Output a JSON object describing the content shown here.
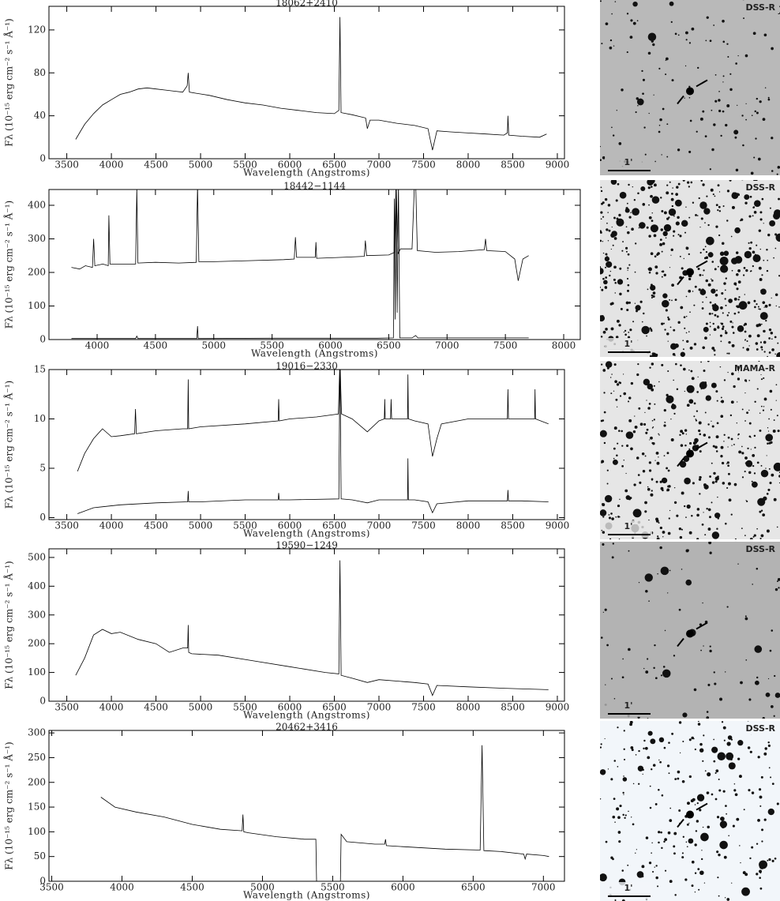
{
  "chart_data": [
    {
      "type": "line",
      "title": "18062+2410",
      "x_label": "Wavelength (Angstroms)",
      "y_label": "Fλ (10⁻¹⁵ erg cm⁻² s⁻¹ Å⁻¹)",
      "xlim": [
        3300,
        9080
      ],
      "ylim": [
        0,
        142
      ],
      "xticks": [
        3500,
        4000,
        4500,
        5000,
        5500,
        6000,
        6500,
        7000,
        7500,
        8000,
        8500,
        9000
      ],
      "yticks": [
        0,
        40,
        80,
        120
      ],
      "series": [
        {
          "color": "#000000",
          "x": [
            3600,
            3650,
            3700,
            3800,
            3900,
            4000,
            4100,
            4200,
            4300,
            4400,
            4500,
            4600,
            4700,
            4800,
            4850,
            4861,
            4875,
            4950,
            5100,
            5300,
            5500,
            5700,
            5900,
            6100,
            6300,
            6500,
            6550,
            6563,
            6575,
            6700,
            6850,
            6870,
            6900,
            7000,
            7200,
            7400,
            7550,
            7600,
            7650,
            7800,
            8000,
            8200,
            8400,
            8440,
            8446,
            8455,
            8600,
            8800,
            8880
          ],
          "values": [
            18,
            25,
            32,
            42,
            50,
            55,
            60,
            62,
            65,
            66,
            65,
            64,
            63,
            62,
            68,
            80,
            62,
            61,
            59,
            55,
            52,
            50,
            47,
            45,
            43,
            42,
            45,
            132,
            43,
            41,
            38,
            28,
            36,
            36,
            33,
            31,
            28,
            8,
            26,
            25,
            24,
            23,
            22,
            24,
            40,
            22,
            21,
            20,
            23
          ]
        }
      ]
    },
    {
      "type": "line",
      "title": "18442−1144",
      "x_label": "Wavelength (Angstroms)",
      "y_label": "Fλ (10⁻¹⁵ erg cm⁻² s⁻¹ Å⁻¹)",
      "xlim": [
        3587,
        8142
      ],
      "ylim": [
        0,
        447
      ],
      "xticks": [
        4000,
        4500,
        5000,
        5500,
        6000,
        6500,
        7000,
        7500,
        8000
      ],
      "yticks": [
        0,
        100,
        200,
        300,
        400
      ],
      "series": [
        {
          "color": "#000000",
          "x": [
            3780,
            3850,
            3900,
            3960,
            3970,
            3980,
            4050,
            4095,
            4101,
            4110,
            4200,
            4330,
            4340,
            4350,
            4500,
            4700,
            4850,
            4861,
            4872,
            5000,
            5300,
            5600,
            5690,
            5700,
            5710,
            5870,
            5876,
            5882,
            6100,
            6290,
            6300,
            6310,
            6500,
            6550,
            6563,
            6580,
            6600,
            6700,
            6720,
            6731,
            6745,
            6900,
            7100,
            7320,
            7330,
            7340,
            7500,
            7580,
            7610,
            7650,
            7700
          ],
          "values": [
            215,
            210,
            220,
            215,
            300,
            220,
            225,
            220,
            370,
            225,
            225,
            225,
            450,
            228,
            230,
            228,
            230,
            460,
            232,
            232,
            235,
            238,
            240,
            305,
            245,
            245,
            290,
            242,
            245,
            248,
            295,
            250,
            252,
            260,
            470,
            255,
            270,
            270,
            460,
            470,
            265,
            260,
            262,
            268,
            300,
            265,
            262,
            240,
            175,
            240,
            250
          ]
        },
        {
          "color": "#000000",
          "x": [
            3780,
            4000,
            4330,
            4340,
            4350,
            4800,
            4855,
            4861,
            4867,
            5500,
            6400,
            6540,
            6548,
            6555,
            6563,
            6572,
            6583,
            6595,
            6700,
            6731,
            6750,
            7700
          ],
          "values": [
            3,
            3,
            3,
            10,
            3,
            3,
            3,
            40,
            3,
            4,
            4,
            5,
            420,
            60,
            470,
            80,
            470,
            5,
            5,
            12,
            5,
            5
          ]
        }
      ]
    },
    {
      "type": "line",
      "title": "19016−2330",
      "x_label": "Wavelength (Angstroms)",
      "y_label": "Fλ (10⁻¹⁵ erg cm⁻² s⁻¹ Å⁻¹)",
      "xlim": [
        3300,
        9080
      ],
      "ylim": [
        -0.2,
        15
      ],
      "xticks": [
        3500,
        4000,
        4500,
        5000,
        5500,
        6000,
        6500,
        7000,
        7500,
        8000,
        8500,
        9000
      ],
      "yticks": [
        0,
        5,
        10,
        15
      ],
      "series": [
        {
          "color": "#000000",
          "x": [
            3620,
            3700,
            3800,
            3900,
            4000,
            4100,
            4260,
            4270,
            4280,
            4500,
            4800,
            4855,
            4861,
            4867,
            5000,
            5500,
            5870,
            5876,
            5882,
            6000,
            6300,
            6545,
            6563,
            6580,
            6700,
            6870,
            7000,
            7060,
            7065,
            7070,
            7130,
            7136,
            7142,
            7320,
            7325,
            7330,
            7400,
            7550,
            7600,
            7650,
            7700,
            8000,
            8440,
            8446,
            8452,
            8600,
            8745,
            8750,
            8755,
            8900
          ],
          "values": [
            4.7,
            6.5,
            8,
            9,
            8.2,
            8.3,
            8.5,
            11,
            8.5,
            8.8,
            9,
            9,
            14,
            9,
            9.2,
            9.5,
            9.8,
            12,
            9.8,
            10,
            10.2,
            10.5,
            16,
            10.5,
            10,
            8.7,
            9.8,
            10,
            12,
            10,
            10,
            12,
            10,
            10,
            14.5,
            10,
            9.8,
            9.5,
            6.2,
            8,
            9.5,
            10,
            10,
            13,
            10,
            10,
            10,
            13,
            10,
            9.5
          ]
        },
        {
          "color": "#000000",
          "x": [
            3620,
            3800,
            4100,
            4500,
            4855,
            4861,
            4867,
            5000,
            5500,
            5870,
            5876,
            5882,
            6000,
            6550,
            6563,
            6576,
            6700,
            6870,
            7000,
            7320,
            7325,
            7330,
            7400,
            7550,
            7600,
            7650,
            8000,
            8440,
            8446,
            8452,
            8600,
            8900
          ],
          "values": [
            0.4,
            1,
            1.3,
            1.5,
            1.6,
            2.7,
            1.6,
            1.6,
            1.8,
            1.8,
            2.5,
            1.8,
            1.8,
            1.9,
            16,
            1.9,
            1.8,
            1.5,
            1.8,
            1.8,
            6,
            1.8,
            1.8,
            1.6,
            0.5,
            1.4,
            1.7,
            1.7,
            2.8,
            1.7,
            1.7,
            1.6
          ]
        }
      ]
    },
    {
      "type": "line",
      "title": "19590−1249",
      "x_label": "Wavelength (Angstroms)",
      "y_label": "Fλ (10⁻¹⁵ erg cm⁻² s⁻¹ Å⁻¹)",
      "xlim": [
        3300,
        9080
      ],
      "ylim": [
        0,
        530
      ],
      "xticks": [
        3500,
        4000,
        4500,
        5000,
        5500,
        6000,
        6500,
        7000,
        7500,
        8000,
        8500,
        9000
      ],
      "yticks": [
        0,
        100,
        200,
        300,
        400,
        500
      ],
      "series": [
        {
          "color": "#000000",
          "x": [
            3600,
            3700,
            3800,
            3900,
            4000,
            4100,
            4300,
            4500,
            4650,
            4800,
            4855,
            4861,
            4867,
            4900,
            5200,
            5600,
            6000,
            6400,
            6550,
            6563,
            6576,
            6700,
            6870,
            7000,
            7400,
            7550,
            7600,
            7650,
            8000,
            8400,
            8900
          ],
          "values": [
            90,
            150,
            230,
            250,
            235,
            240,
            215,
            200,
            170,
            185,
            185,
            265,
            170,
            165,
            160,
            140,
            120,
            100,
            95,
            490,
            90,
            80,
            65,
            75,
            65,
            60,
            20,
            55,
            50,
            45,
            40
          ]
        }
      ]
    },
    {
      "type": "line",
      "title": "20462+3416",
      "x_label": "Wavelength (Angstroms)",
      "y_label": "Fλ (10⁻¹⁵ erg cm⁻² s⁻¹ Å⁻¹)",
      "xlim": [
        3480,
        7150
      ],
      "ylim": [
        0,
        305
      ],
      "xticks": [
        3500,
        4000,
        4500,
        5000,
        5500,
        6000,
        6500,
        7000
      ],
      "yticks": [
        0,
        50,
        100,
        150,
        200,
        250,
        300
      ],
      "series": [
        {
          "color": "#000000",
          "x": [
            3850,
            3950,
            4100,
            4300,
            4500,
            4700,
            4855,
            4861,
            4867,
            4900,
            5100,
            5300,
            5380,
            5385,
            5555,
            5560,
            5600,
            5800,
            5870,
            5876,
            5882,
            6000,
            6300,
            6550,
            6563,
            6576,
            6700,
            6860,
            6870,
            6880,
            7000,
            7040
          ],
          "values": [
            170,
            150,
            140,
            130,
            115,
            105,
            102,
            135,
            100,
            98,
            90,
            85,
            85,
            0,
            0,
            95,
            80,
            75,
            75,
            85,
            72,
            70,
            65,
            63,
            275,
            62,
            60,
            55,
            45,
            55,
            52,
            50
          ]
        }
      ]
    }
  ],
  "finder_charts": [
    {
      "survey": "DSS-R",
      "scale": "1'"
    },
    {
      "survey": "DSS-R",
      "scale": "1'"
    },
    {
      "survey": "MAMA-R",
      "scale": "1'"
    },
    {
      "survey": "DSS-R",
      "scale": "1'"
    },
    {
      "survey": "DSS-R",
      "scale": "1'"
    }
  ]
}
